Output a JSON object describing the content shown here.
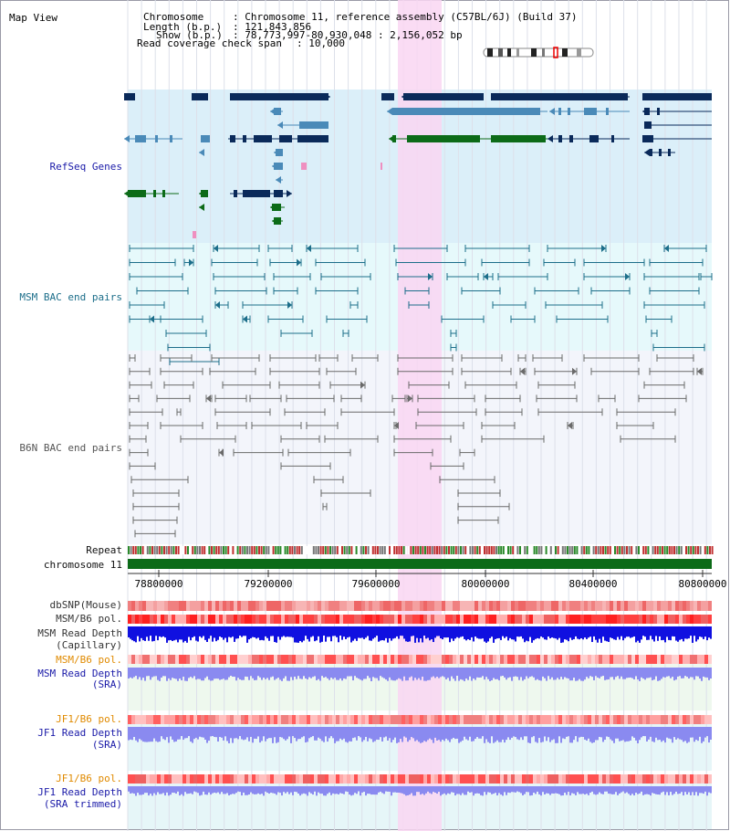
{
  "title": "Map View",
  "header": {
    "chromosome_key": "Chromosome",
    "chromosome_val": ": Chromosome 11, reference assembly (C57BL/6J) (Build 37)",
    "length_key": "Length (b.p.)",
    "length_val": ": 121,843,856",
    "show_key": "Show (b.p.)",
    "show_val": ": 78,773,997-80,930,048 : 2,156,052 bp",
    "span_key": "Read coverage check span",
    "span_val": ": 10,000"
  },
  "tracks": {
    "refseq": "RefSeq Genes",
    "msm_bac": "MSM BAC end pairs",
    "b6n_bac": "B6N BAC end pairs",
    "repeat": "Repeat",
    "chromosome": "chromosome 11",
    "dbsnp": "dbSNP(Mouse)",
    "msm_b6_pol_1": "MSM/B6 pol.",
    "msm_read_depth_cap_1": "MSM Read Depth",
    "msm_read_depth_cap_2": "(Capillary)",
    "msm_b6_pol_2": "MSM/B6 pol.",
    "msm_read_depth_sra_1": "MSM Read Depth",
    "msm_read_depth_sra_2": "(SRA)",
    "jf1_b6_pol_1": "JF1/B6 pol.",
    "jf1_read_depth_sra_1": "JF1 Read Depth",
    "jf1_read_depth_sra_2": "(SRA)",
    "jf1_b6_pol_2": "JF1/B6 pol.",
    "jf1_read_depth_trim_1": "JF1 Read Depth",
    "jf1_read_depth_trim_2": "(SRA trimmed)"
  },
  "ruler": {
    "ticks": [
      "78800000",
      "79200000",
      "79600000",
      "80000000",
      "80400000",
      "80800000"
    ]
  },
  "colors": {
    "refseq_bg": "#dbeff9",
    "msm_bg": "#e6f9fb",
    "b6n_bg": "#f3f5fb",
    "highlight": "#f9d6f2",
    "gene_navy": "#0a2a5a",
    "gene_blue": "#4a8ab8",
    "gene_green": "#0c6b18",
    "bac_teal": "#1c6e8a",
    "bac_gray": "#6a6a6a",
    "chrom_green": "#0c6b18",
    "label_blue": "#1a1aa8",
    "label_orange": "#e08a00"
  }
}
